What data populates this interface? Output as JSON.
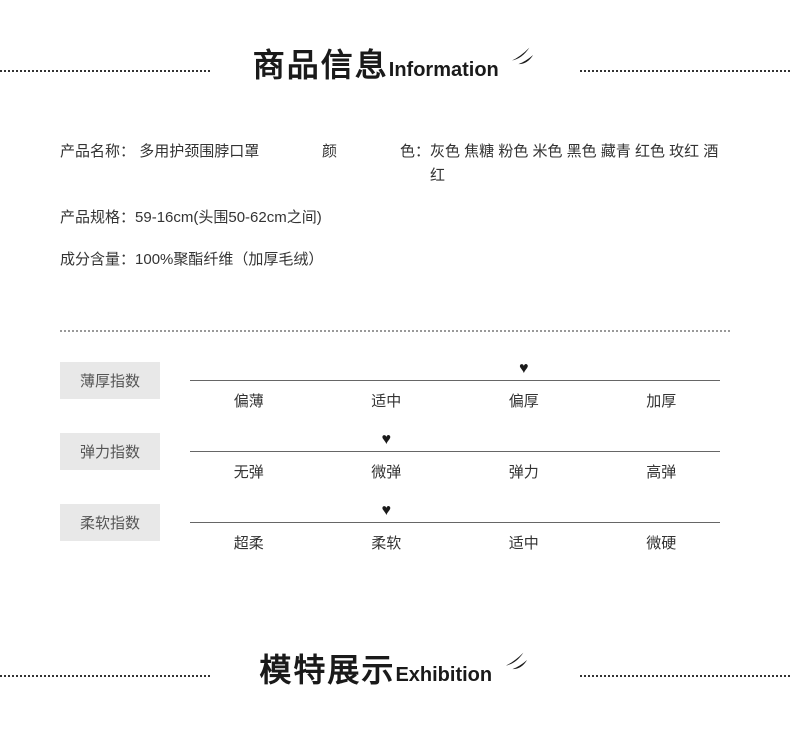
{
  "header1": {
    "cn": "商品信息",
    "en": "Information"
  },
  "info": {
    "name_label": "产品名称：",
    "name_value": "多用护颈围脖口罩",
    "color_label": "颜",
    "color_label2": "色：",
    "color_value": "灰色 焦糖 粉色 米色 黑色 藏青 红色 玫红 酒红",
    "spec_label": "产品规格：",
    "spec_value": "59-16cm(头围50-62cm之间)",
    "material_label": "成分含量：",
    "material_value": "100%聚酯纤维（加厚毛绒）"
  },
  "indices": [
    {
      "label": "薄厚指数",
      "options": [
        "偏薄",
        "适中",
        "偏厚",
        "加厚"
      ],
      "selected": 2
    },
    {
      "label": "弹力指数",
      "options": [
        "无弹",
        "微弹",
        "弹力",
        "高弹"
      ],
      "selected": 1
    },
    {
      "label": "柔软指数",
      "options": [
        "超柔",
        "柔软",
        "适中",
        "微硬"
      ],
      "selected": 1
    }
  ],
  "header2": {
    "cn": "模特展示",
    "en": "Exhibition"
  },
  "colors": {
    "bg": "#ffffff",
    "text": "#333333",
    "label_bg": "#e8e8e8",
    "line": "#666666",
    "heart": "#1a1a1a"
  }
}
